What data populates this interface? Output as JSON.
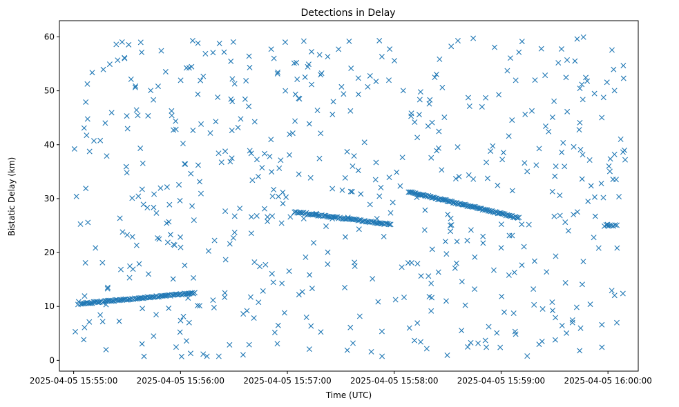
{
  "chart_data": {
    "type": "scatter",
    "title": "Detections in Delay",
    "xlabel": "Time (UTC)",
    "ylabel": "Bistatic Delay (km)",
    "marker": "x",
    "color": "#1f77b4",
    "grid": false,
    "xlim": [
      "2025-04-05 15:54:52",
      "2025-04-05 16:00:17"
    ],
    "ylim": [
      -2,
      63
    ],
    "xticks": [
      "2025-04-05 15:55:00",
      "2025-04-05 15:56:00",
      "2025-04-05 15:57:00",
      "2025-04-05 15:58:00",
      "2025-04-05 15:59:00",
      "2025-04-05 16:00:00"
    ],
    "yticks": [
      "0",
      "10",
      "20",
      "30",
      "40",
      "50",
      "60"
    ],
    "tracks": [
      {
        "start": "2025-04-05 15:55:04",
        "end": "2025-04-05 15:56:08",
        "delay_start": 10.5,
        "delay_end": 12.5,
        "count": 90
      },
      {
        "start": "2025-04-05 15:57:04",
        "end": "2025-04-05 15:57:58",
        "delay_start": 27.5,
        "delay_end": 25.2,
        "count": 75
      },
      {
        "start": "2025-04-05 15:58:08",
        "end": "2025-04-05 15:59:10",
        "delay_start": 31.3,
        "delay_end": 26.4,
        "count": 95
      },
      {
        "start": "2025-04-05 15:59:58",
        "end": "2025-04-05 16:00:05",
        "delay_start": 25.0,
        "delay_end": 25.0,
        "count": 8
      }
    ],
    "clutter": {
      "start": "2025-04-05 15:55:00",
      "end": "2025-04-05 16:00:10",
      "delay_min": 0.5,
      "delay_max": 60,
      "count": 560
    }
  }
}
